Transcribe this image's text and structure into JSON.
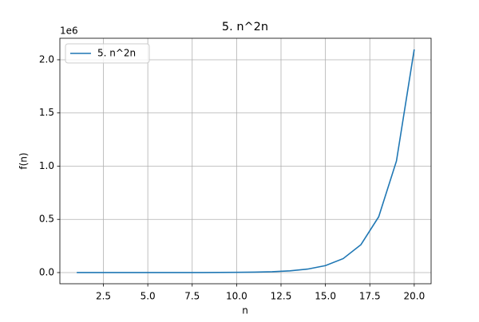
{
  "chart_data": {
    "type": "line",
    "title": "5. n^2n",
    "x_label": "n",
    "y_label": "f(n)",
    "y_offset_label": "1e6",
    "x": [
      1,
      2,
      3,
      4,
      5,
      6,
      7,
      8,
      9,
      10,
      11,
      12,
      13,
      14,
      15,
      16,
      17,
      18,
      19,
      20
    ],
    "series": [
      {
        "name": "5. n^2n",
        "color": "#1f77b4",
        "values": [
          4e-06,
          8e-06,
          1.6e-05,
          3.2e-05,
          6.4e-05,
          0.000128,
          0.000256,
          0.000512,
          0.001024,
          0.002048,
          0.004096,
          0.008192,
          0.016384,
          0.032768,
          0.065536,
          0.131072,
          0.262144,
          0.524288,
          1.048576,
          2.097152
        ]
      }
    ],
    "xlim": [
      0.05,
      20.95
    ],
    "xticks": [
      2.5,
      {
        "value": 5,
        "label": "5.0"
      },
      7.5,
      {
        "value": 10,
        "label": "10.0"
      },
      12.5,
      {
        "value": 15,
        "label": "15.0"
      },
      17.5,
      {
        "value": 20,
        "label": "20.0"
      }
    ],
    "ylim": [
      -0.105,
      2.202
    ],
    "yticks": [
      {
        "value": 0,
        "label": "0.0"
      },
      0.5,
      {
        "value": 1,
        "label": "1.0"
      },
      1.5,
      {
        "value": 2,
        "label": "2.0"
      }
    ],
    "grid": true,
    "legend": "upper left"
  }
}
